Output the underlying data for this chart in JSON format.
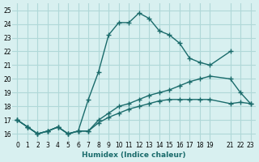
{
  "xlabel": "Humidex (Indice chaleur)",
  "bg_color": "#d8f0f0",
  "grid_color": "#b0d8d8",
  "line_color": "#1a6b6b",
  "series": [
    {
      "x": [
        0,
        1,
        2,
        3,
        4,
        5,
        6,
        7,
        8,
        9,
        10,
        11,
        12,
        13,
        14,
        15,
        16,
        17,
        18,
        19,
        21
      ],
      "y": [
        17.0,
        16.5,
        16.0,
        16.2,
        16.5,
        16.0,
        16.2,
        18.5,
        20.5,
        23.2,
        24.1,
        24.1,
        24.8,
        24.4,
        23.5,
        23.2,
        22.6,
        21.5,
        21.2,
        21.0,
        22.0
      ]
    },
    {
      "x": [
        0,
        1,
        2,
        3,
        4,
        5,
        6,
        7,
        8,
        9,
        10,
        11,
        12,
        13,
        14,
        15,
        16,
        17,
        18,
        19,
        21,
        22,
        23
      ],
      "y": [
        17.0,
        16.5,
        16.0,
        16.2,
        16.5,
        16.0,
        16.2,
        16.2,
        17.0,
        17.5,
        18.0,
        18.2,
        18.5,
        18.8,
        19.0,
        19.2,
        19.5,
        19.8,
        20.0,
        20.2,
        20.0,
        19.0,
        18.2
      ]
    },
    {
      "x": [
        0,
        1,
        2,
        3,
        4,
        5,
        6,
        7,
        8,
        9,
        10,
        11,
        12,
        13,
        14,
        15,
        16,
        17,
        18,
        19,
        21,
        22,
        23
      ],
      "y": [
        17.0,
        16.5,
        16.0,
        16.2,
        16.5,
        16.0,
        16.2,
        16.2,
        16.8,
        17.2,
        17.5,
        17.8,
        18.0,
        18.2,
        18.4,
        18.5,
        18.5,
        18.5,
        18.5,
        18.5,
        18.2,
        18.3,
        18.2
      ]
    }
  ],
  "xlim": [
    -0.5,
    23.5
  ],
  "ylim": [
    15.5,
    25.5
  ],
  "yticks": [
    16,
    17,
    18,
    19,
    20,
    21,
    22,
    23,
    24,
    25
  ],
  "xtick_positions": [
    0,
    1,
    2,
    3,
    4,
    5,
    6,
    7,
    8,
    9,
    10,
    11,
    12,
    13,
    14,
    15,
    16,
    17,
    18,
    19,
    21,
    22,
    23
  ],
  "xtick_labels": [
    "0",
    "1",
    "2",
    "3",
    "4",
    "5",
    "6",
    "7",
    "8",
    "9",
    "10",
    "11",
    "12",
    "13",
    "14",
    "15",
    "16",
    "17",
    "18",
    "19",
    "21",
    "22",
    "23"
  ]
}
